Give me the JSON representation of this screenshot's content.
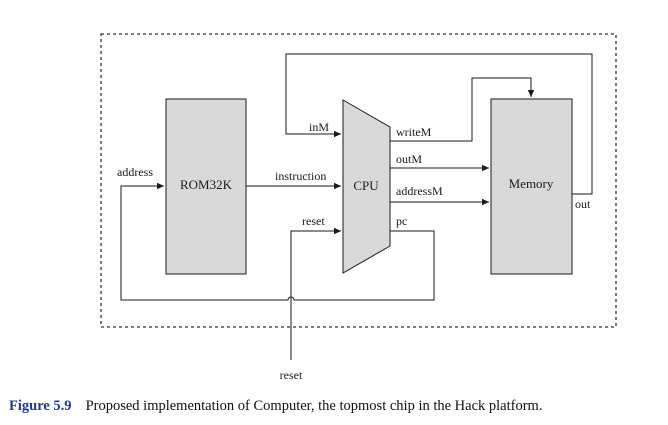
{
  "diagram": {
    "blocks": {
      "rom": "ROM32K",
      "cpu": "CPU",
      "memory": "Memory"
    },
    "signals": {
      "address": "address",
      "instruction": "instruction",
      "inM": "inM",
      "reset_in": "reset",
      "writeM": "writeM",
      "outM": "outM",
      "addressM": "addressM",
      "pc": "pc",
      "out": "out",
      "reset_ext": "reset"
    }
  },
  "caption": {
    "figure_number": "Figure 5.9",
    "text": "Proposed implementation of Computer, the topmost chip in the Hack platform."
  },
  "colors": {
    "block_fill": "#d9d9d9",
    "line": "#1a1a1a",
    "figure_number": "#1f3a93"
  }
}
